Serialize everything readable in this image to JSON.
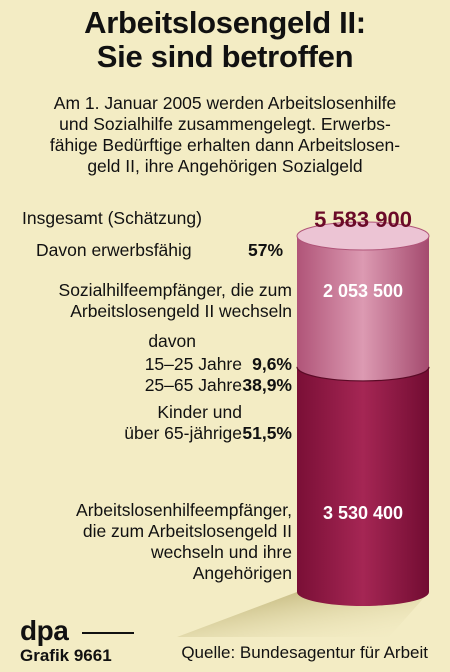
{
  "title_line1": "Arbeitslosengeld II:",
  "title_line2": "Sie sind betroffen",
  "intro": [
    "Am 1. Januar 2005 werden Arbeitslosenhilfe",
    "und Sozialhilfe zusammengelegt. Erwerbs-",
    "fähige Bedürftige erhalten dann Arbeitslosen-",
    "geld II, ihre Angehörigen Sozialgeld"
  ],
  "chart_data": {
    "type": "stacked-cylinder",
    "title": "Arbeitslosengeld II: Sie sind betroffen",
    "total_label": "Insgesamt (Schätzung)",
    "total_value": "5 583 900",
    "total": 5583900,
    "employable_label": "Davon erwerbsfähig",
    "employable_pct": "57%",
    "segments": [
      {
        "label_lines": [
          "Sozialhilfeempfänger, die zum",
          "Arbeitslosengeld II wechseln"
        ],
        "value_text": "2 053 500",
        "value": 2053500,
        "color": "#c46a8c"
      },
      {
        "label_lines": [
          "Arbeitslosenhilfeempfänger,",
          "die zum Arbeitslosengeld II",
          "wechseln und ihre",
          "Angehörigen"
        ],
        "value_text": "3 530 400",
        "value": 3530400,
        "color": "#8c1640"
      }
    ],
    "breakdown_heading": "davon",
    "breakdown": [
      {
        "label_lines": [
          "15–25 Jahre"
        ],
        "pct": "9,6%"
      },
      {
        "label_lines": [
          "25–65 Jahre"
        ],
        "pct": "38,9%"
      },
      {
        "label_lines": [
          "Kinder und",
          "über 65-jährige"
        ],
        "pct": "51,5%"
      }
    ]
  },
  "footer": {
    "agency": "dpa",
    "graphic_id": "Grafik 9661",
    "source": "Quelle:  Bundesagentur für Arbeit"
  }
}
